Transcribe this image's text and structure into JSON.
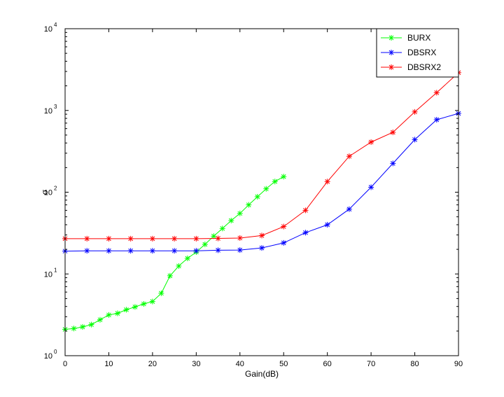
{
  "figure": {
    "background": "#ffffff"
  },
  "chart_data": {
    "type": "line",
    "title": "",
    "xlabel": "Gain(dB)",
    "ylabel": "σ",
    "xscale": "linear",
    "yscale": "log",
    "xlim": [
      0,
      90
    ],
    "ylim": [
      1,
      10000
    ],
    "x_ticks": [
      0,
      10,
      20,
      30,
      40,
      50,
      60,
      70,
      80,
      90
    ],
    "x_tick_labels": [
      "0",
      "10",
      "20",
      "30",
      "40",
      "50",
      "60",
      "70",
      "80",
      "90"
    ],
    "y_ticks": [
      1,
      10,
      100,
      1000,
      10000
    ],
    "y_tick_labels": [
      {
        "base": "10",
        "exp": "0"
      },
      {
        "base": "10",
        "exp": "1"
      },
      {
        "base": "10",
        "exp": "2"
      },
      {
        "base": "10",
        "exp": "3"
      },
      {
        "base": "10",
        "exp": "4"
      }
    ],
    "grid": false,
    "legend_position": "top-right",
    "marker": "asterisk",
    "series": [
      {
        "name": "BURX",
        "color": "#00ff00",
        "x": [
          0,
          2,
          4,
          6,
          8,
          10,
          12,
          14,
          16,
          18,
          20,
          22,
          24,
          26,
          28,
          30,
          32,
          34,
          36,
          38,
          40,
          42,
          44,
          46,
          48,
          50
        ],
        "y": [
          2.1,
          2.15,
          2.25,
          2.4,
          2.75,
          3.15,
          3.3,
          3.65,
          3.95,
          4.3,
          4.6,
          5.8,
          9.5,
          12.5,
          15.5,
          18.5,
          23,
          29,
          36,
          45,
          55,
          70,
          88,
          110,
          135,
          155
        ]
      },
      {
        "name": "DBSRX",
        "color": "#0000ff",
        "x": [
          0,
          5,
          10,
          15,
          20,
          25,
          30,
          35,
          40,
          45,
          50,
          55,
          60,
          65,
          70,
          75,
          80,
          85,
          90
        ],
        "y": [
          19,
          19.2,
          19.2,
          19.2,
          19.2,
          19.2,
          19.2,
          19.5,
          19.6,
          20.8,
          24,
          32,
          40,
          62,
          115,
          225,
          440,
          770,
          920
        ]
      },
      {
        "name": "DBSRX2",
        "color": "#ff0000",
        "x": [
          0,
          5,
          10,
          15,
          20,
          25,
          30,
          35,
          40,
          45,
          50,
          55,
          60,
          65,
          70,
          75,
          80,
          85,
          90
        ],
        "y": [
          27,
          27,
          27,
          27,
          27,
          27,
          27,
          27.2,
          27.5,
          29.5,
          38,
          60,
          135,
          275,
          410,
          540,
          960,
          1650,
          2900
        ]
      }
    ]
  }
}
